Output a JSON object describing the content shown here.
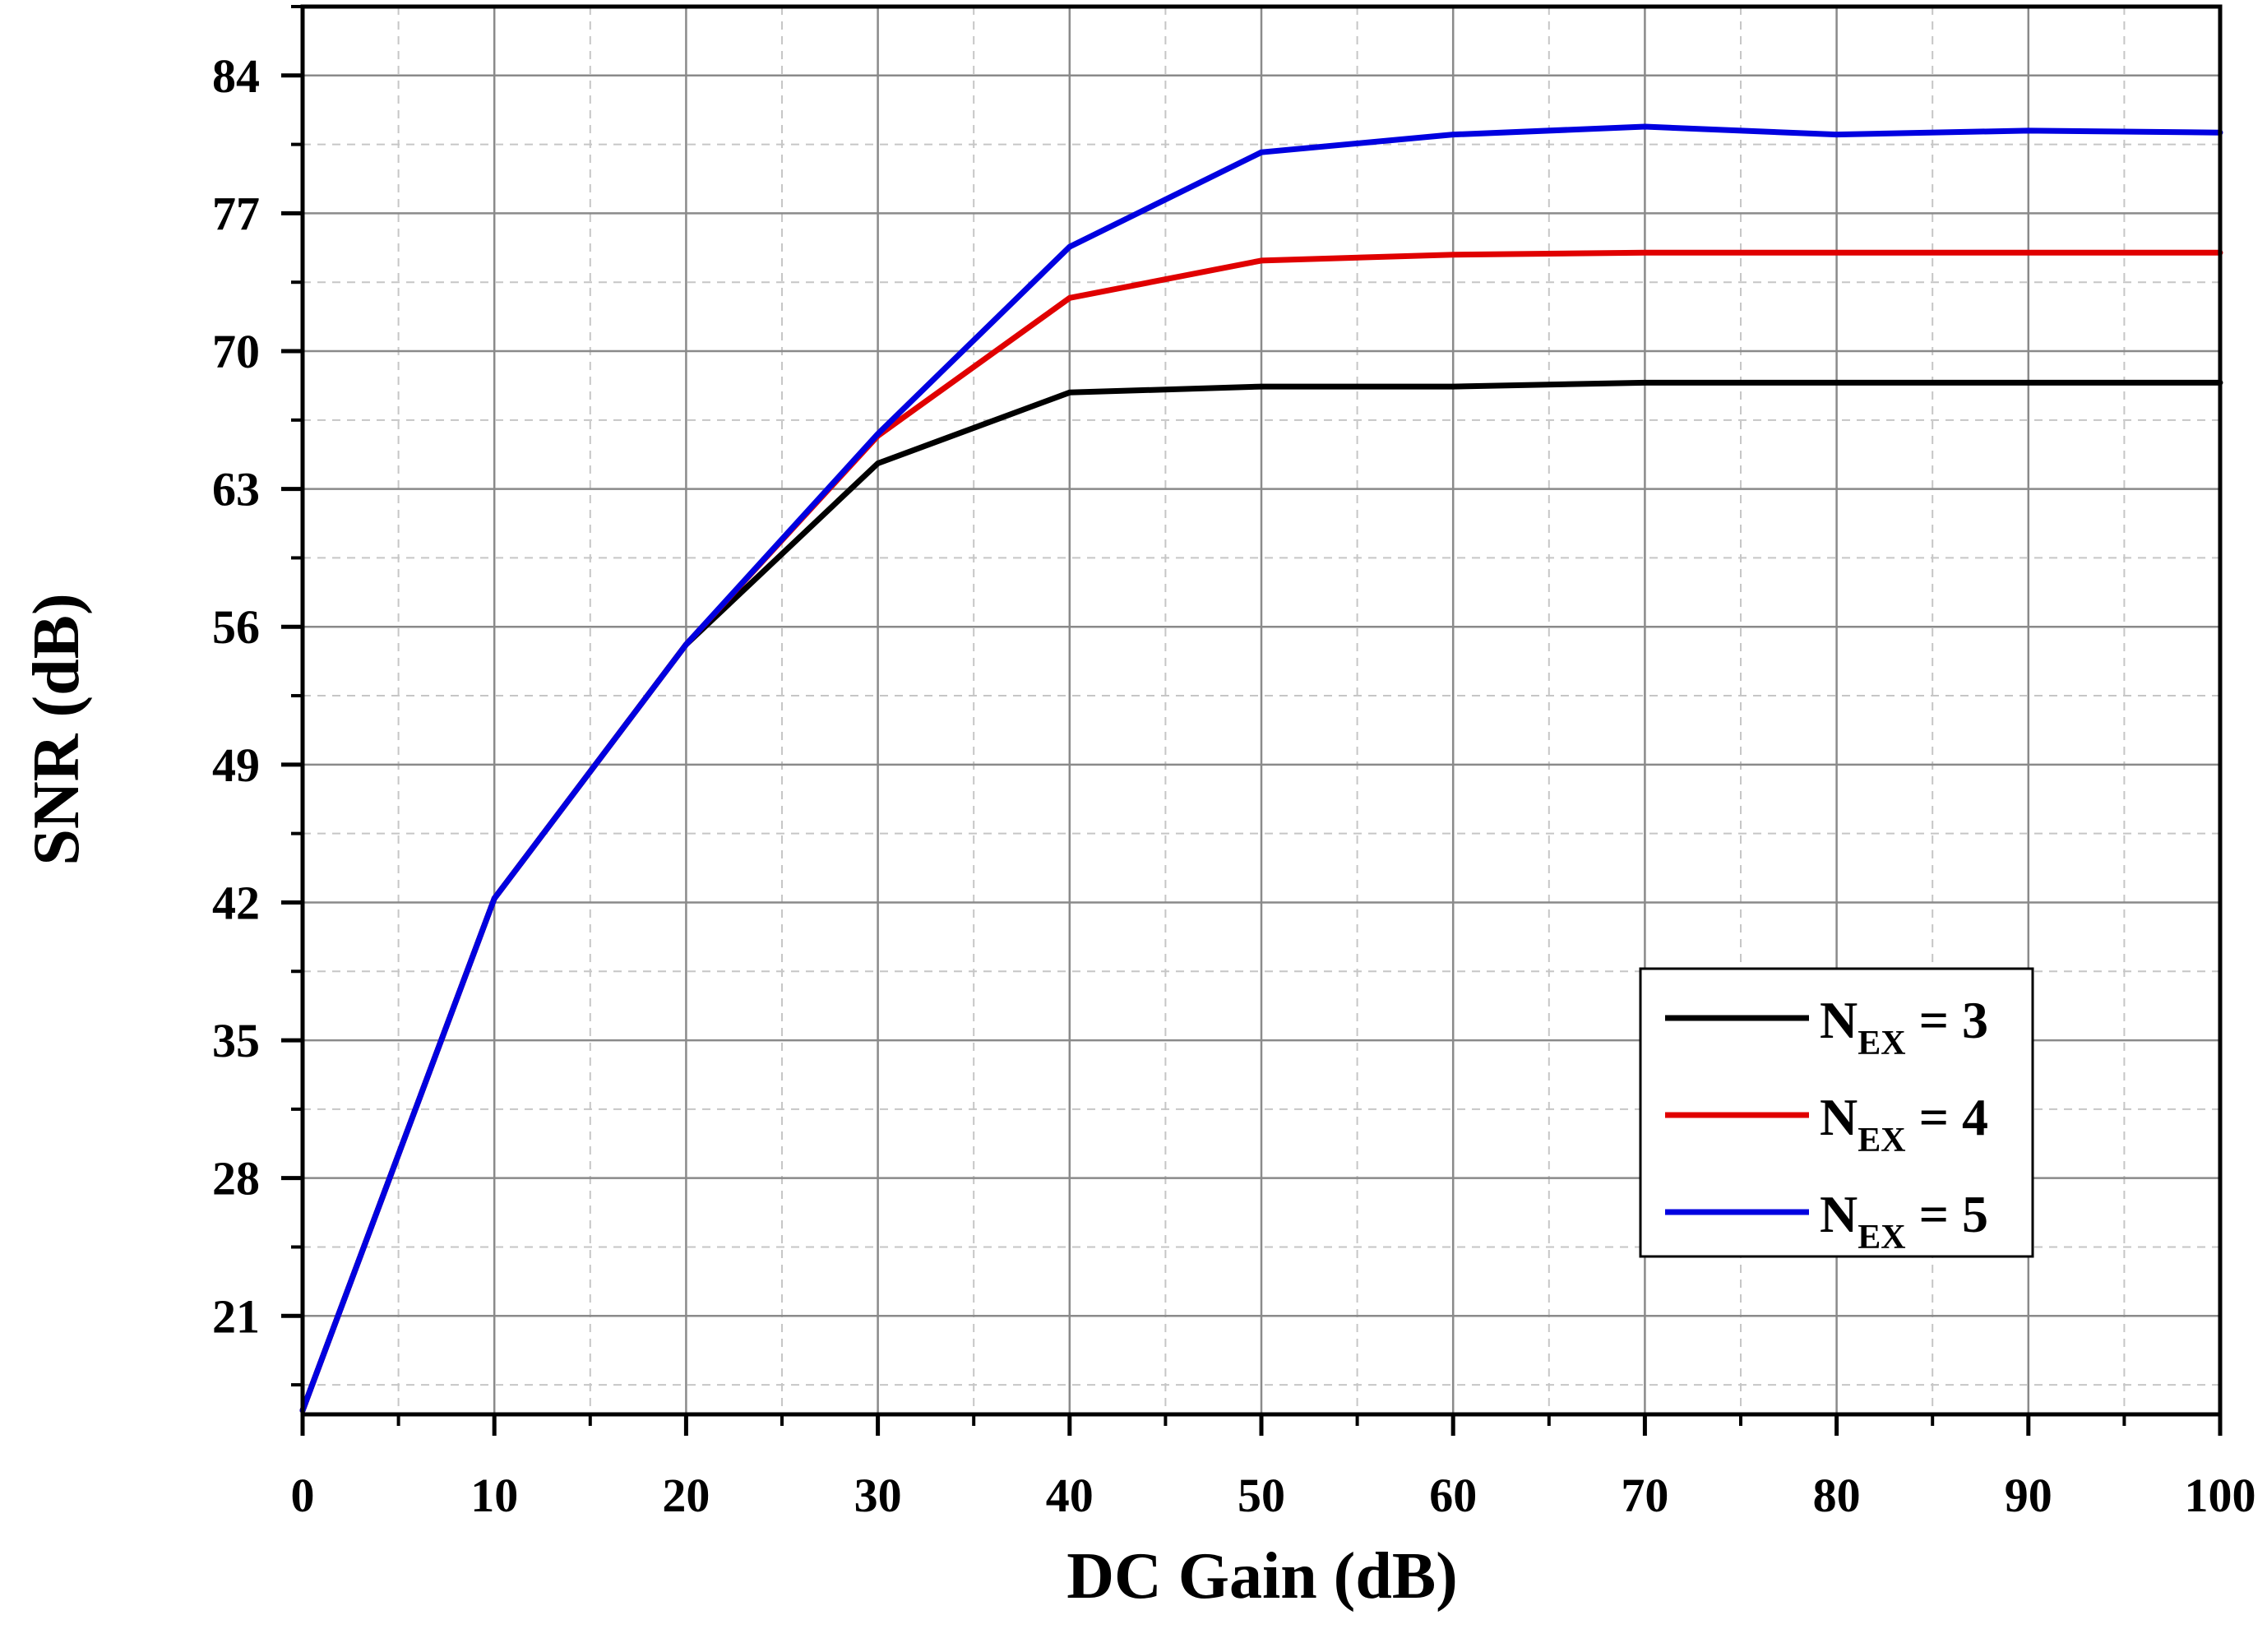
{
  "chart_data": {
    "type": "line",
    "xlabel": "DC Gain (dB)",
    "ylabel": "SNR (dB)",
    "xlim": [
      0,
      100
    ],
    "ylim": [
      16,
      87.5
    ],
    "xticks": [
      0,
      10,
      20,
      30,
      40,
      50,
      60,
      70,
      80,
      90,
      100
    ],
    "yticks": [
      21,
      28,
      35,
      42,
      49,
      56,
      63,
      70,
      77,
      84
    ],
    "grid": true,
    "legend_position": "bottom-right",
    "x": [
      0,
      10,
      20,
      30,
      40,
      50,
      60,
      70,
      80,
      90,
      100
    ],
    "series": [
      {
        "name": "N_EX = 3",
        "label_main": "N",
        "label_sub": "EX",
        "label_tail": " = 3",
        "color": "#000000",
        "values": [
          16.2,
          42.2,
          55.1,
          64.3,
          67.9,
          68.2,
          68.2,
          68.4,
          68.4,
          68.4,
          68.4
        ]
      },
      {
        "name": "N_EX = 4",
        "label_main": "N",
        "label_sub": "EX",
        "label_tail": " = 4",
        "color": "#e00000",
        "values": [
          16.2,
          42.2,
          55.1,
          65.7,
          72.7,
          74.6,
          74.9,
          75.0,
          75.0,
          75.0,
          75.0
        ]
      },
      {
        "name": "N_EX = 5",
        "label_main": "N",
        "label_sub": "EX",
        "label_tail": " = 5",
        "color": "#0000e0",
        "values": [
          16.2,
          42.2,
          55.1,
          65.8,
          75.3,
          80.1,
          81.0,
          81.4,
          81.0,
          81.2,
          81.1
        ]
      }
    ]
  }
}
